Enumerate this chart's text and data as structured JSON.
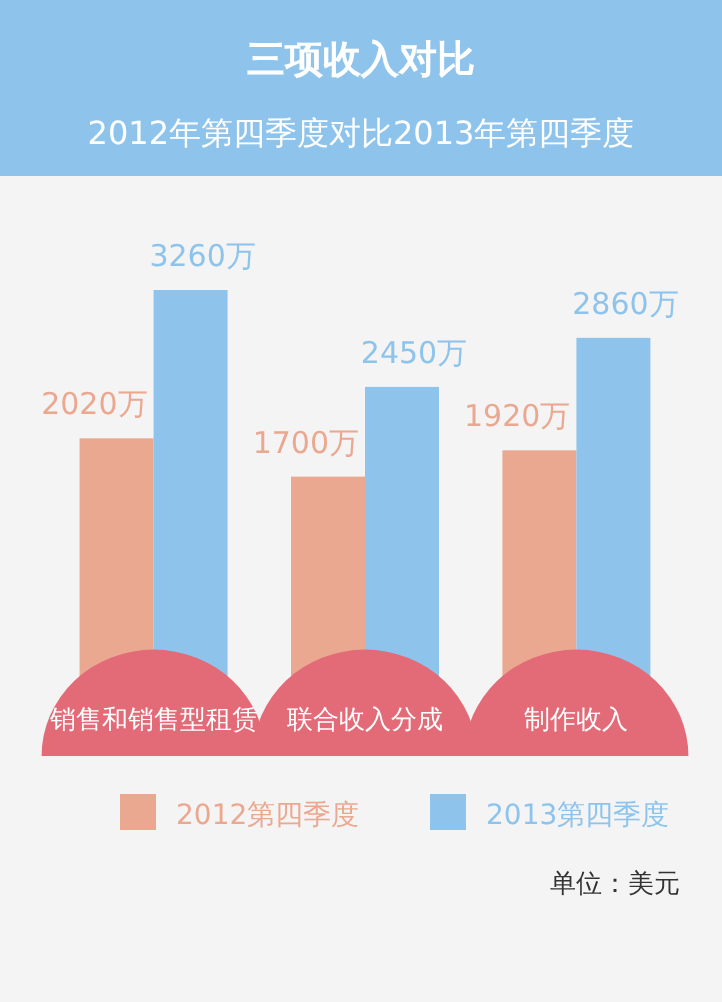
{
  "chart_data": {
    "type": "bar",
    "title": "三项收入对比",
    "subtitle": "2012年第四季度对比2013年第四季度",
    "categories": [
      "销售和销售型租赁",
      "联合收入分成",
      "制作收入"
    ],
    "series": [
      {
        "name": "2012第四季度",
        "color": "#eba891",
        "values": [
          2020,
          1700,
          1920
        ],
        "value_labels": [
          "2020万",
          "1700万",
          "1920万"
        ]
      },
      {
        "name": "2013第四季度",
        "color": "#8ec4ec",
        "values": [
          3260,
          2450,
          2860
        ],
        "value_labels": [
          "3260万",
          "2450万",
          "2860万"
        ]
      }
    ],
    "legend": "bottom",
    "annotations": [
      "单位：美元"
    ]
  }
}
